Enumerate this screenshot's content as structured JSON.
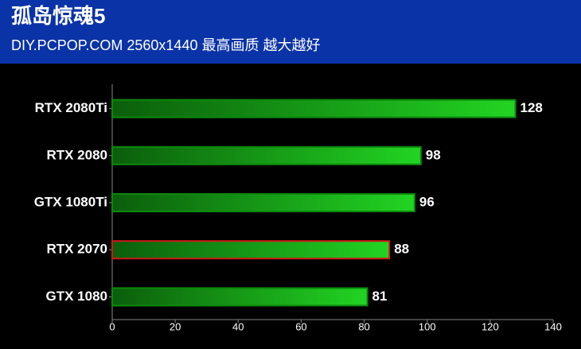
{
  "chart_data": {
    "type": "hbar",
    "title": "孤岛惊魂5",
    "subtitle": "DIY.PCPOP.COM 2560x1440 最高画质 越大越好",
    "categories": [
      "RTX 2080Ti",
      "RTX 2080",
      "GTX 1080Ti",
      "RTX 2070",
      "GTX 1080"
    ],
    "values": [
      128,
      98,
      96,
      88,
      81
    ],
    "color": "#22d422",
    "edge_colors": [
      "#0c8a0c",
      "#0c8a0c",
      "#0c8a0c",
      "#d01818",
      "#0c8a0c"
    ],
    "xlim": [
      0,
      140
    ],
    "xticks": [
      0,
      20,
      40,
      60,
      80,
      100,
      120,
      140
    ]
  }
}
